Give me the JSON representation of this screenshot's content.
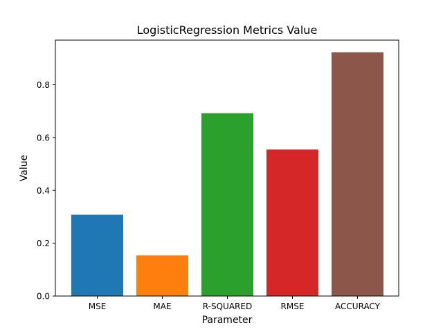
{
  "chart_data": {
    "type": "bar",
    "title": "LogisticRegression Metrics Value",
    "xlabel": "Parameter",
    "ylabel": "Value",
    "categories": [
      "MSE",
      "MAE",
      "R-SQUARED",
      "RMSE",
      "ACCURACY"
    ],
    "values": [
      0.3077,
      0.1538,
      0.6923,
      0.5547,
      0.9231
    ],
    "colors": [
      "#1f77b4",
      "#ff7f0e",
      "#2ca02c",
      "#d62728",
      "#8c564b"
    ],
    "ylim": [
      0,
      0.969
    ],
    "yticks": [
      0.0,
      0.2,
      0.4,
      0.6,
      0.8
    ],
    "ytick_labels": [
      "0.0",
      "0.2",
      "0.4",
      "0.6",
      "0.8"
    ],
    "grid": false,
    "legend": "none"
  }
}
